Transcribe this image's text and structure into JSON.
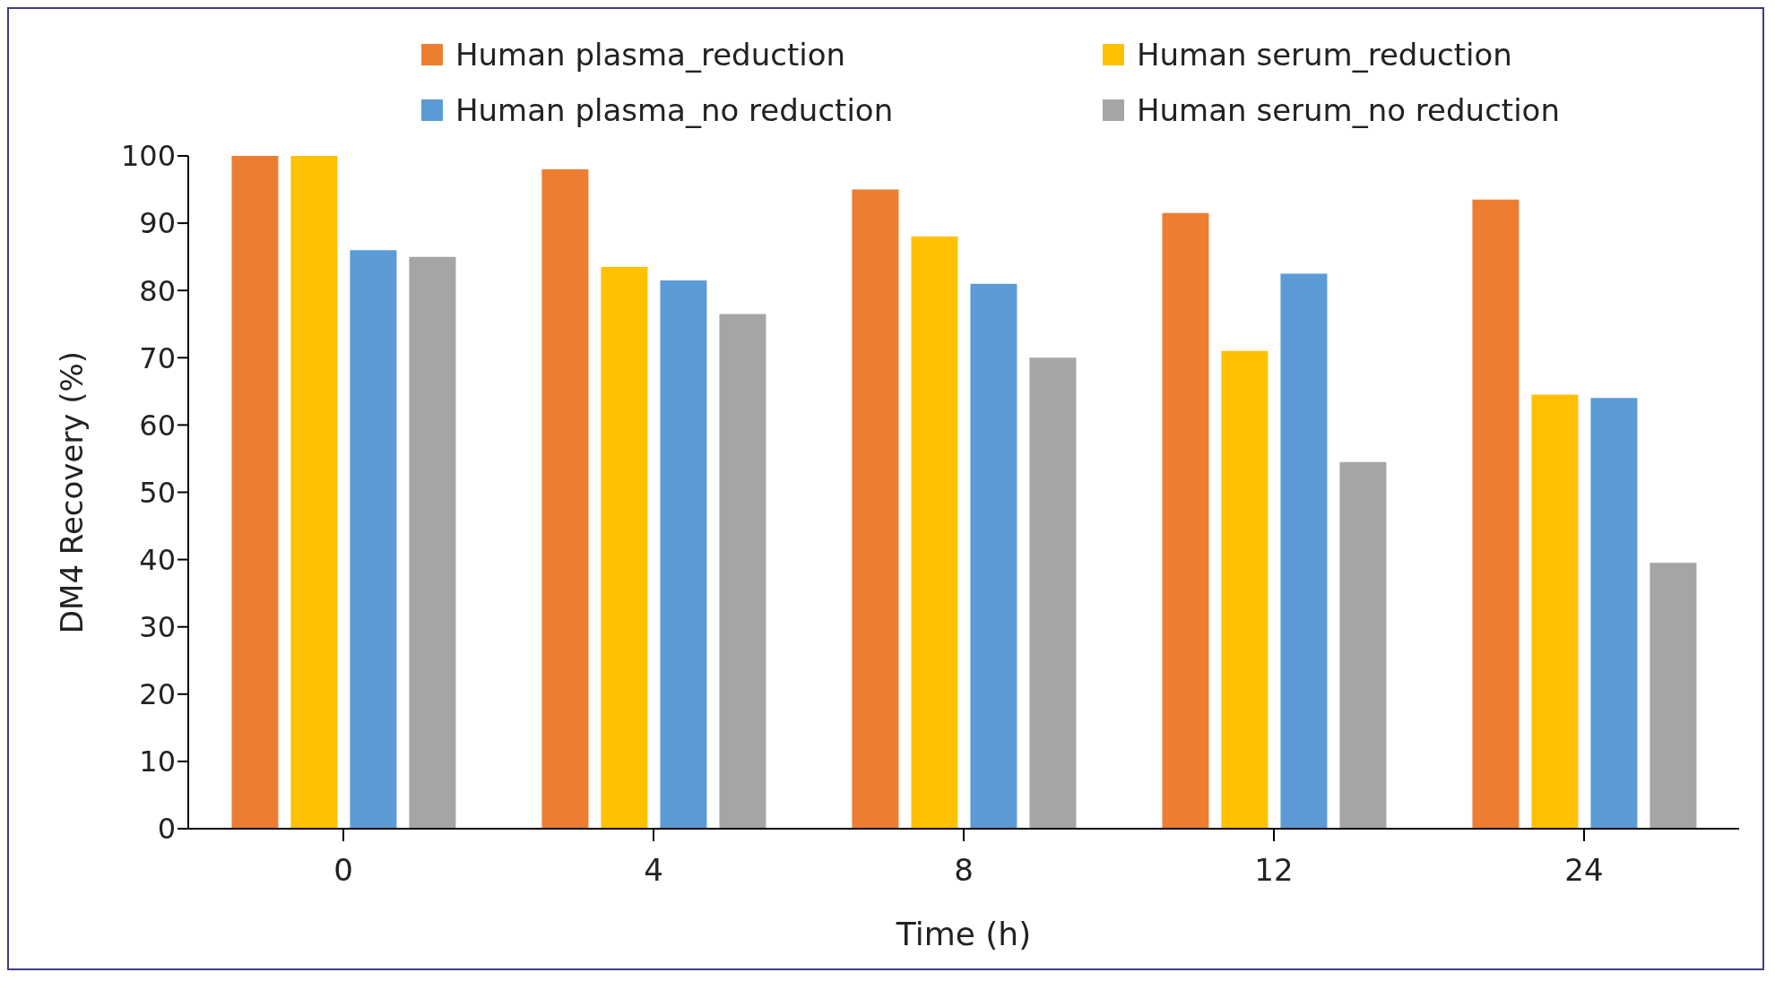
{
  "chart_data": {
    "type": "bar",
    "xlabel": "Time (h)",
    "ylabel": "DM4 Recovery (%)",
    "categories": [
      "0",
      "4",
      "8",
      "12",
      "24"
    ],
    "series": [
      {
        "name": "Human plasma_reduction",
        "color": "#ed7d31",
        "values": [
          100,
          98,
          95,
          91.5,
          93.5
        ]
      },
      {
        "name": "Human serum_reduction",
        "color": "#ffc000",
        "values": [
          100,
          83.5,
          88,
          71,
          64.5
        ]
      },
      {
        "name": "Human plasma_no reduction",
        "color": "#5b9bd5",
        "values": [
          86,
          81.5,
          81,
          82.5,
          64
        ]
      },
      {
        "name": "Human serum_no reduction",
        "color": "#a5a5a5",
        "values": [
          85,
          76.5,
          70,
          54.5,
          39.5
        ]
      }
    ],
    "ylim": [
      0,
      100
    ],
    "yticks": [
      0,
      10,
      20,
      30,
      40,
      50,
      60,
      70,
      80,
      90,
      100
    ],
    "grid": false,
    "legend": "top"
  }
}
